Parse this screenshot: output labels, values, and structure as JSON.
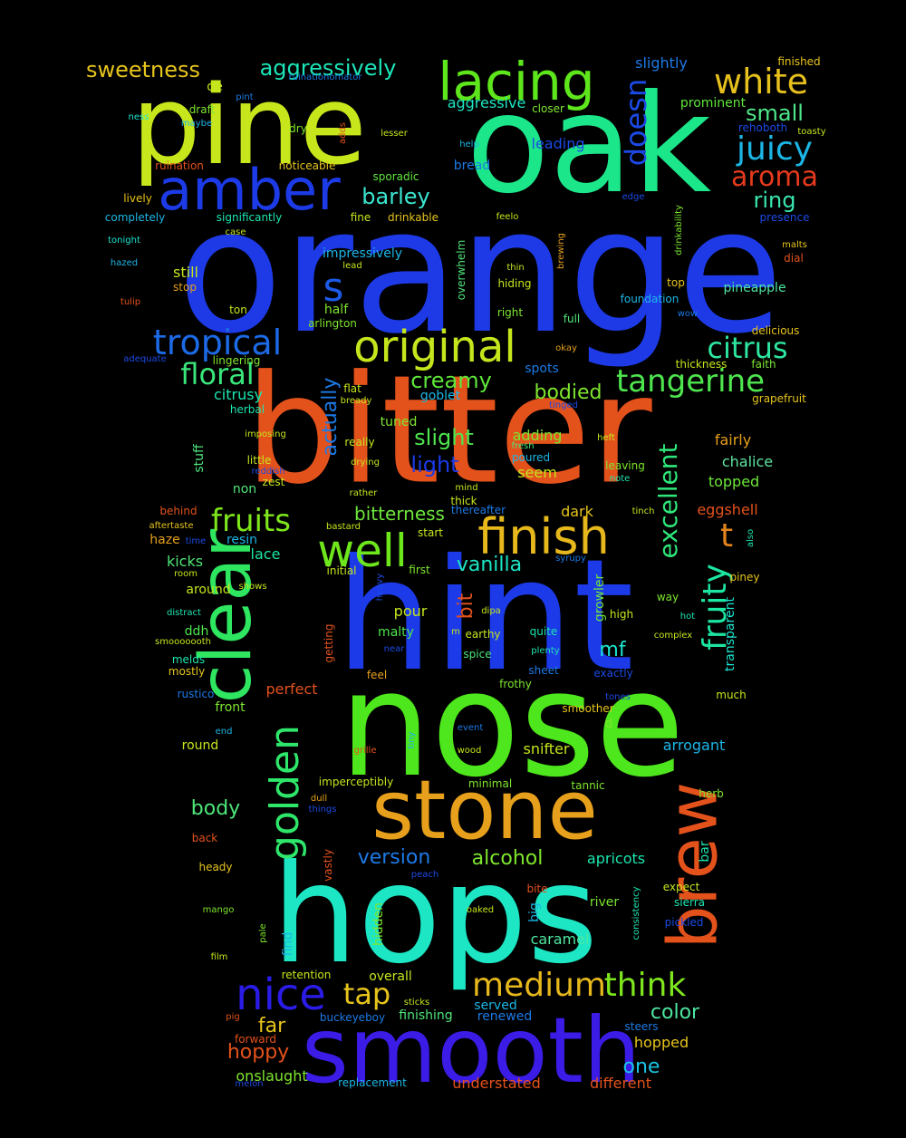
{
  "cloud": {
    "words": [
      {
        "text": "orange",
        "color": "#1e3ae6"
      },
      {
        "text": "bitter",
        "color": "#e4521c"
      },
      {
        "text": "hint",
        "color": "#1c3ae8"
      },
      {
        "text": "nose",
        "color": "#4ee61c"
      },
      {
        "text": "oak",
        "color": "#1ce68a"
      },
      {
        "text": "hops",
        "color": "#1ce6c4"
      },
      {
        "text": "pine",
        "color": "#c8e61c"
      },
      {
        "text": "smooth",
        "color": "#3a1ce6"
      },
      {
        "text": "stone",
        "color": "#e6a01c"
      },
      {
        "text": "clear",
        "color": "#2ee660"
      },
      {
        "text": "brew",
        "color": "#e4521c"
      },
      {
        "text": "amber",
        "color": "#1c3ae6"
      },
      {
        "text": "lacing",
        "color": "#5ee61c"
      },
      {
        "text": "finish",
        "color": "#e6b81c"
      },
      {
        "text": "well",
        "color": "#6ee61c"
      },
      {
        "text": "golden",
        "color": "#2ee66a"
      },
      {
        "text": "original",
        "color": "#c4e61c"
      },
      {
        "text": "nice",
        "color": "#2a1ce6"
      },
      {
        "text": "tropical",
        "color": "#1c6ae6"
      },
      {
        "text": "medium",
        "color": "#e6b81c"
      },
      {
        "text": "think",
        "color": "#7ee61c"
      },
      {
        "text": "white",
        "color": "#e6c01c"
      },
      {
        "text": "juicy",
        "color": "#1cb6e6"
      },
      {
        "text": "aroma",
        "color": "#e63a1c"
      },
      {
        "text": "tangerine",
        "color": "#4ee64e"
      },
      {
        "text": "citrus",
        "color": "#2ee6a0"
      },
      {
        "text": "floral",
        "color": "#3ae67a"
      },
      {
        "text": "fruits",
        "color": "#7ee61c"
      },
      {
        "text": "tap",
        "color": "#e6c41c"
      },
      {
        "text": "doesn",
        "color": "#1c4ae6"
      },
      {
        "text": "fruity",
        "color": "#1ce6a0"
      },
      {
        "text": "excellent",
        "color": "#2ee67a"
      },
      {
        "text": "creamy",
        "color": "#5ee63a"
      },
      {
        "text": "small",
        "color": "#4ee68a"
      },
      {
        "text": "ring",
        "color": "#3ae6b0"
      },
      {
        "text": "barley",
        "color": "#3ae6d0"
      },
      {
        "text": "aggressively",
        "color": "#1ce6b8"
      },
      {
        "text": "sweetness",
        "color": "#e6c41c"
      },
      {
        "text": "s",
        "color": "#1c5ae6"
      },
      {
        "text": "t",
        "color": "#e4821c"
      },
      {
        "text": "bodied",
        "color": "#7ee62e"
      },
      {
        "text": "slight",
        "color": "#4ee64e"
      },
      {
        "text": "light",
        "color": "#1c3ae6"
      },
      {
        "text": "actually",
        "color": "#1c7ae6"
      },
      {
        "text": "bitterness",
        "color": "#6ee63a"
      },
      {
        "text": "vanilla",
        "color": "#1ce6c4"
      },
      {
        "text": "color",
        "color": "#4ee6a0"
      },
      {
        "text": "far",
        "color": "#e6c41c"
      },
      {
        "text": "hoppy",
        "color": "#e4521c"
      },
      {
        "text": "one",
        "color": "#1cc4e6"
      },
      {
        "text": "alcohol",
        "color": "#7ee62e"
      },
      {
        "text": "version",
        "color": "#1c7ae6"
      },
      {
        "text": "body",
        "color": "#4ee67a"
      },
      {
        "text": "mf",
        "color": "#1ce6d0"
      },
      {
        "text": "bit",
        "color": "#e4521c"
      },
      {
        "text": "slightly",
        "color": "#1c7ae6"
      },
      {
        "text": "aggressive",
        "color": "#1ce6c4"
      },
      {
        "text": "prominent",
        "color": "#5ee63a"
      },
      {
        "text": "leading",
        "color": "#1c4ae6"
      },
      {
        "text": "impressively",
        "color": "#1cb6e6"
      },
      {
        "text": "pineapple",
        "color": "#4ee6a0"
      },
      {
        "text": "tuned",
        "color": "#7ee62e"
      },
      {
        "text": "topped",
        "color": "#6ee63a"
      },
      {
        "text": "eggshell",
        "color": "#e4521c"
      },
      {
        "text": "snifter",
        "color": "#c4e61c"
      },
      {
        "text": "arrogant",
        "color": "#1cb6e6"
      },
      {
        "text": "caramel",
        "color": "#4ee6a0"
      },
      {
        "text": "overall",
        "color": "#c4e61c"
      },
      {
        "text": "finishing",
        "color": "#4ee67a"
      },
      {
        "text": "renewed",
        "color": "#1c7ae6"
      },
      {
        "text": "onslaught",
        "color": "#7ee62e"
      },
      {
        "text": "understated",
        "color": "#e4521c"
      },
      {
        "text": "different",
        "color": "#e4521c"
      },
      {
        "text": "hopped",
        "color": "#e6c41c"
      },
      {
        "text": "apricots",
        "color": "#1ce6b0"
      },
      {
        "text": "goblet",
        "color": "#1cb6e6"
      },
      {
        "text": "fairly",
        "color": "#e6a01c"
      },
      {
        "text": "chalice",
        "color": "#5ee6a0"
      },
      {
        "text": "adding",
        "color": "#7ee62e"
      },
      {
        "text": "seem",
        "color": "#c4e61c"
      },
      {
        "text": "dark",
        "color": "#e6c41c"
      },
      {
        "text": "pour",
        "color": "#c4e61c"
      },
      {
        "text": "malty",
        "color": "#4ee64e"
      },
      {
        "text": "half",
        "color": "#7ee62e"
      },
      {
        "text": "still",
        "color": "#c4e61c"
      },
      {
        "text": "citrusy",
        "color": "#1ce6b0"
      },
      {
        "text": "kicks",
        "color": "#4ee67a"
      },
      {
        "text": "lace",
        "color": "#1ce6a0"
      },
      {
        "text": "resin",
        "color": "#1cb6e6"
      },
      {
        "text": "haze",
        "color": "#e6a01c"
      },
      {
        "text": "around",
        "color": "#c4e61c"
      },
      {
        "text": "ddh",
        "color": "#4ee64e"
      },
      {
        "text": "front",
        "color": "#7ee62e"
      },
      {
        "text": "round",
        "color": "#c4e61c"
      },
      {
        "text": "perfect",
        "color": "#e4521c"
      },
      {
        "text": "growler",
        "color": "#6ee63a"
      },
      {
        "text": "transparent",
        "color": "#1ce6d0"
      },
      {
        "text": "spots",
        "color": "#1c7ae6"
      },
      {
        "text": "top",
        "color": "#e6c41c"
      },
      {
        "text": "full",
        "color": "#4ee67a"
      },
      {
        "text": "foundation",
        "color": "#1cb6e6"
      },
      {
        "text": "right",
        "color": "#7ee62e"
      },
      {
        "text": "hiding",
        "color": "#c4e61c"
      },
      {
        "text": "bread",
        "color": "#1c7ae6"
      },
      {
        "text": "fine",
        "color": "#c4e61c"
      },
      {
        "text": "drinkable",
        "color": "#e6c41c"
      },
      {
        "text": "sporadic",
        "color": "#5ee63a"
      },
      {
        "text": "noticeable",
        "color": "#e6c41c"
      },
      {
        "text": "closer",
        "color": "#7ee62e"
      },
      {
        "text": "help",
        "color": "#1cb6e6"
      },
      {
        "text": "rehoboth",
        "color": "#1c4ae6"
      },
      {
        "text": "toasty",
        "color": "#c4e61c"
      },
      {
        "text": "finished",
        "color": "#e6c41c"
      },
      {
        "text": "ruinationomator",
        "color": "#1c7ae6"
      },
      {
        "text": "de",
        "color": "#c4e61c"
      },
      {
        "text": "pint",
        "color": "#1c7ae6"
      },
      {
        "text": "draft",
        "color": "#7ee62e"
      },
      {
        "text": "ness",
        "color": "#1ce6d0"
      },
      {
        "text": "maybe",
        "color": "#1cb6e6"
      },
      {
        "text": "dry",
        "color": "#7ee62e"
      },
      {
        "text": "adds",
        "color": "#e4521c"
      },
      {
        "text": "lesser",
        "color": "#c4e61c"
      },
      {
        "text": "ruination",
        "color": "#e4521c"
      },
      {
        "text": "lively",
        "color": "#e6c41c"
      },
      {
        "text": "completely",
        "color": "#1cb6e6"
      },
      {
        "text": "significantly",
        "color": "#1ce6b0"
      },
      {
        "text": "case",
        "color": "#c4e61c"
      },
      {
        "text": "tonight",
        "color": "#1ce6d0"
      },
      {
        "text": "hazed",
        "color": "#1cb6e6"
      },
      {
        "text": "tulip",
        "color": "#e4521c"
      },
      {
        "text": "stop",
        "color": "#e6a01c"
      },
      {
        "text": "ton",
        "color": "#c4e61c"
      },
      {
        "text": "arlington",
        "color": "#7ee62e"
      },
      {
        "text": "lead",
        "color": "#c4e61c"
      },
      {
        "text": "overwhelm",
        "color": "#4ee67a"
      },
      {
        "text": "thin",
        "color": "#c4e61c"
      },
      {
        "text": "brewing",
        "color": "#e6a01c"
      },
      {
        "text": "feelo",
        "color": "#c4e61c"
      },
      {
        "text": "edge",
        "color": "#1c4ae6"
      },
      {
        "text": "drinkability",
        "color": "#7ee62e"
      },
      {
        "text": "presence",
        "color": "#1c4ae6"
      },
      {
        "text": "malts",
        "color": "#e6c41c"
      },
      {
        "text": "dial",
        "color": "#e4521c"
      },
      {
        "text": "wow",
        "color": "#1c7ae6"
      },
      {
        "text": "delicious",
        "color": "#e6c41c"
      },
      {
        "text": "okay",
        "color": "#e6a01c"
      },
      {
        "text": "faith",
        "color": "#7ee62e"
      },
      {
        "text": "thickness",
        "color": "#c4e61c"
      },
      {
        "text": "grapefruit",
        "color": "#e6c41c"
      },
      {
        "text": "adequate",
        "color": "#1c4ae6"
      },
      {
        "text": "lingering",
        "color": "#7ee62e"
      },
      {
        "text": "herbal",
        "color": "#1ce6b0"
      },
      {
        "text": "flat",
        "color": "#c4e61c"
      },
      {
        "text": "bready",
        "color": "#c4e61c"
      },
      {
        "text": "tinged",
        "color": "#1c4ae6"
      },
      {
        "text": "imposing",
        "color": "#c4e61c"
      },
      {
        "text": "really",
        "color": "#c4e61c"
      },
      {
        "text": "fresh",
        "color": "#4ee67a"
      },
      {
        "text": "poured",
        "color": "#1cb6e6"
      },
      {
        "text": "heft",
        "color": "#c4e61c"
      },
      {
        "text": "leaving",
        "color": "#7ee62e"
      },
      {
        "text": "note",
        "color": "#1ce6b0"
      },
      {
        "text": "stuff",
        "color": "#4ee67a"
      },
      {
        "text": "little",
        "color": "#c4e61c"
      },
      {
        "text": "reddish",
        "color": "#1c4ae6"
      },
      {
        "text": "zest",
        "color": "#c4e61c"
      },
      {
        "text": "drying",
        "color": "#c4e61c"
      },
      {
        "text": "non",
        "color": "#4ee67a"
      },
      {
        "text": "rather",
        "color": "#c4e61c"
      },
      {
        "text": "mind",
        "color": "#c4e61c"
      },
      {
        "text": "thick",
        "color": "#c4e61c"
      },
      {
        "text": "thereafter",
        "color": "#1c7ae6"
      },
      {
        "text": "tinch",
        "color": "#c4e61c"
      },
      {
        "text": "also",
        "color": "#1ce6b0"
      },
      {
        "text": "behind",
        "color": "#e4521c"
      },
      {
        "text": "aftertaste",
        "color": "#e6c41c"
      },
      {
        "text": "time",
        "color": "#1c4ae6"
      },
      {
        "text": "bastard",
        "color": "#c4e61c"
      },
      {
        "text": "start",
        "color": "#c4e61c"
      },
      {
        "text": "syrupy",
        "color": "#1c7ae6"
      },
      {
        "text": "piney",
        "color": "#e6c41c"
      },
      {
        "text": "room",
        "color": "#c4e61c"
      },
      {
        "text": "initial",
        "color": "#c4e61c"
      },
      {
        "text": "first",
        "color": "#7ee62e"
      },
      {
        "text": "shows",
        "color": "#c4e61c"
      },
      {
        "text": "way",
        "color": "#7ee62e"
      },
      {
        "text": "distract",
        "color": "#1ce6b0"
      },
      {
        "text": "heavy",
        "color": "#1c4ae6"
      },
      {
        "text": "dipa",
        "color": "#c4e61c"
      },
      {
        "text": "high",
        "color": "#c4e61c"
      },
      {
        "text": "hot",
        "color": "#1ce6b0"
      },
      {
        "text": "m",
        "color": "#c4e61c"
      },
      {
        "text": "earthy",
        "color": "#c4e61c"
      },
      {
        "text": "quite",
        "color": "#1ce6b0"
      },
      {
        "text": "complex",
        "color": "#c4e61c"
      },
      {
        "text": "smooooooth",
        "color": "#c4e61c"
      },
      {
        "text": "getting",
        "color": "#e4521c"
      },
      {
        "text": "near",
        "color": "#1c4ae6"
      },
      {
        "text": "spice",
        "color": "#4ee67a"
      },
      {
        "text": "plenty",
        "color": "#1ce6b0"
      },
      {
        "text": "melds",
        "color": "#1ce6b0"
      },
      {
        "text": "mostly",
        "color": "#e6c41c"
      },
      {
        "text": "feel",
        "color": "#e6a01c"
      },
      {
        "text": "sheet",
        "color": "#1c7ae6"
      },
      {
        "text": "exactly",
        "color": "#1c4ae6"
      },
      {
        "text": "frothy",
        "color": "#7ee62e"
      },
      {
        "text": "rustico",
        "color": "#1c7ae6"
      },
      {
        "text": "tones",
        "color": "#1c4ae6"
      },
      {
        "text": "much",
        "color": "#c4e61c"
      },
      {
        "text": "smoother",
        "color": "#e6c41c"
      },
      {
        "text": "d",
        "color": "#7ee62e"
      },
      {
        "text": "end",
        "color": "#1cb6e6"
      },
      {
        "text": "event",
        "color": "#1c7ae6"
      },
      {
        "text": "tiny",
        "color": "#1cb6e6"
      },
      {
        "text": "grille",
        "color": "#e4521c"
      },
      {
        "text": "wood",
        "color": "#c4e61c"
      },
      {
        "text": "imperceptibly",
        "color": "#c4e61c"
      },
      {
        "text": "minimal",
        "color": "#7ee62e"
      },
      {
        "text": "tannic",
        "color": "#7ee62e"
      },
      {
        "text": "herb",
        "color": "#7ee62e"
      },
      {
        "text": "dull",
        "color": "#e6a01c"
      },
      {
        "text": "things",
        "color": "#1c4ae6"
      },
      {
        "text": "back",
        "color": "#e4521c"
      },
      {
        "text": "vastly",
        "color": "#e4521c"
      },
      {
        "text": "bar",
        "color": "#1ce6b0"
      },
      {
        "text": "heady",
        "color": "#e6c41c"
      },
      {
        "text": "peach",
        "color": "#1c4ae6"
      },
      {
        "text": "bite",
        "color": "#e4521c"
      },
      {
        "text": "expect",
        "color": "#c4e61c"
      },
      {
        "text": "mango",
        "color": "#7ee62e"
      },
      {
        "text": "consistency",
        "color": "#1ce6b0"
      },
      {
        "text": "sierra",
        "color": "#1ce6b0"
      },
      {
        "text": "river",
        "color": "#7ee62e"
      },
      {
        "text": "big",
        "color": "#1cb6e6"
      },
      {
        "text": "oaked",
        "color": "#c4e61c"
      },
      {
        "text": "hidden",
        "color": "#7ee62e"
      },
      {
        "text": "pickled",
        "color": "#1c4ae6"
      },
      {
        "text": "pale",
        "color": "#7ee62e"
      },
      {
        "text": "find",
        "color": "#1cb6e6"
      },
      {
        "text": "film",
        "color": "#c4e61c"
      },
      {
        "text": "retention",
        "color": "#c4e61c"
      },
      {
        "text": "sticks",
        "color": "#c4e61c"
      },
      {
        "text": "served",
        "color": "#1cb6e6"
      },
      {
        "text": "steers",
        "color": "#1c7ae6"
      },
      {
        "text": "pig",
        "color": "#e4521c"
      },
      {
        "text": "buckeyeboy",
        "color": "#1c7ae6"
      },
      {
        "text": "forward",
        "color": "#e4521c"
      },
      {
        "text": "replacement",
        "color": "#1cb6e6"
      },
      {
        "text": "melon",
        "color": "#1c4ae6"
      }
    ]
  }
}
